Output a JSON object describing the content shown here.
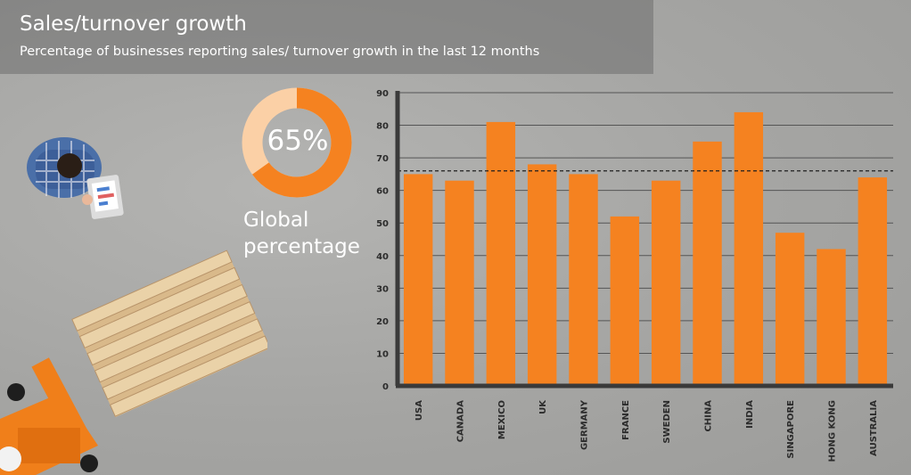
{
  "header": {
    "title": "Sales/turnover growth",
    "subtitle": "Percentage of businesses reporting sales/ turnover growth in the last 12 months"
  },
  "global": {
    "value": 65,
    "value_label": "65%",
    "label": "Global percentage"
  },
  "colors": {
    "bar": "#f58220",
    "donut_bg": "#fbd0a6",
    "axis": "#3a3a3a"
  },
  "chart_data": {
    "type": "bar",
    "title": "Sales/turnover growth",
    "xlabel": "",
    "ylabel": "",
    "ylim": [
      0,
      90
    ],
    "yticks": [
      0,
      10,
      20,
      30,
      40,
      50,
      60,
      70,
      80,
      90
    ],
    "grid": true,
    "reference_line": 66,
    "categories": [
      "USA",
      "CANADA",
      "MEXICO",
      "UK",
      "GERMANY",
      "FRANCE",
      "SWEDEN",
      "CHINA",
      "INDIA",
      "SINGAPORE",
      "HONG KONG",
      "AUSTRALIA"
    ],
    "values": [
      65,
      63,
      81,
      68,
      65,
      52,
      63,
      75,
      84,
      47,
      42,
      64
    ]
  }
}
